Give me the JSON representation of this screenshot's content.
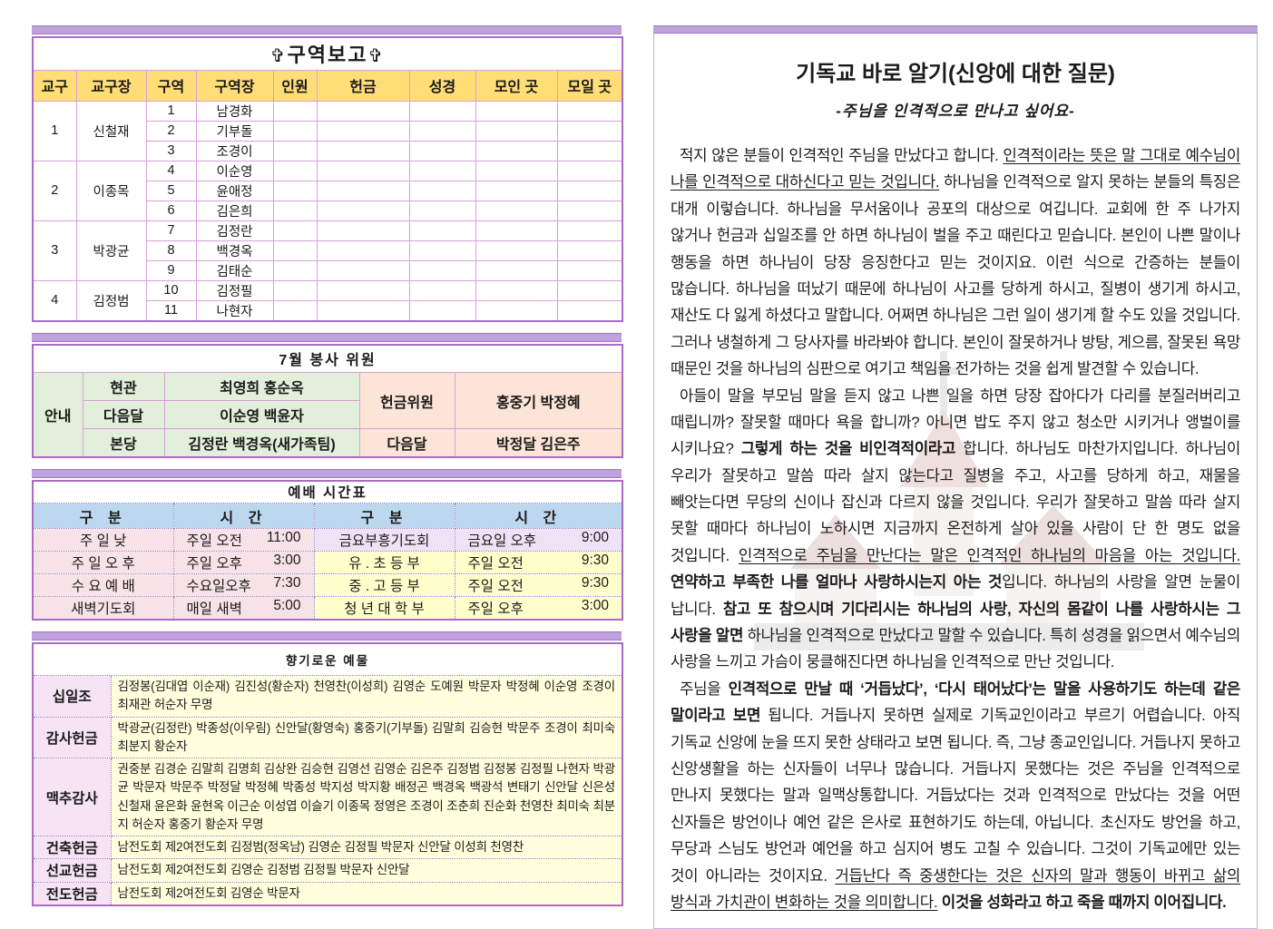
{
  "accent_colors": {
    "bar_purple": "#bfa2dd",
    "table_border": "#a96bc6",
    "header_yellow": "#ffdd77",
    "green": "#e2efda",
    "peach": "#fce4d6",
    "blue": "#bdd7ee",
    "pink": "#f7e3e7",
    "lavender": "#f0e2f6",
    "yellow": "#ffffcc"
  },
  "district_report": {
    "title": "구역보고",
    "cross_icon": "✞",
    "headers": [
      "교구",
      "교구장",
      "구역",
      "구역장",
      "인원",
      "헌금",
      "성경",
      "모인 곳",
      "모일 곳"
    ],
    "groups": [
      {
        "gu": "1",
        "leader": "신철재",
        "rows": [
          [
            "1",
            "남경화"
          ],
          [
            "2",
            "기부돌"
          ],
          [
            "3",
            "조경이"
          ]
        ]
      },
      {
        "gu": "2",
        "leader": "이종목",
        "rows": [
          [
            "4",
            "이순영"
          ],
          [
            "5",
            "윤애정"
          ],
          [
            "6",
            "김은희"
          ]
        ]
      },
      {
        "gu": "3",
        "leader": "박광균",
        "rows": [
          [
            "7",
            "김정란"
          ],
          [
            "8",
            "백경옥"
          ],
          [
            "9",
            "김태순"
          ]
        ]
      },
      {
        "gu": "4",
        "leader": "김정범",
        "rows": [
          [
            "10",
            "김정필"
          ],
          [
            "11",
            "나현자"
          ]
        ]
      }
    ]
  },
  "service_committee": {
    "title": "7월 봉사 위원",
    "left_label": "안내",
    "rows": [
      {
        "slot": "현관",
        "names": "최영희 홍순옥"
      },
      {
        "slot": "다음달",
        "names": "이순영 백윤자"
      },
      {
        "slot": "본당",
        "names": "김정란 백경옥(새가족팀)"
      }
    ],
    "right": [
      {
        "slot": "헌금위원",
        "names": "홍중기 박정혜"
      },
      {
        "slot": "다음달",
        "names": "박정달 김은주"
      }
    ]
  },
  "worship_schedule": {
    "title": "예배 시간표",
    "headers": [
      "구  분",
      "시  간",
      "구  분",
      "시  간"
    ],
    "rows": [
      {
        "l_name": "주 일 낮",
        "l_day": "주일 오전",
        "l_time": "11:00",
        "r_name": "금요부흥기도회",
        "r_day": "금요일 오후",
        "r_time": "9:00",
        "r_style": "lav"
      },
      {
        "l_name": "주 일 오 후",
        "l_day": "주일 오후",
        "l_time": "3:00",
        "r_name": "유 . 초 등 부",
        "r_day": "주일  오전",
        "r_time": "9:30",
        "r_style": "yel"
      },
      {
        "l_name": "수 요 예 배",
        "l_day": "수요일오후",
        "l_time": "7:30",
        "r_name": "중 . 고 등 부",
        "r_day": "주일  오전",
        "r_time": "9:30",
        "r_style": "yel"
      },
      {
        "l_name": "새벽기도회",
        "l_day": "매일 새벽",
        "l_time": "5:00",
        "r_name": "청 년 대 학 부",
        "r_day": "주일  오후",
        "r_time": "3:00",
        "r_style": "yel"
      }
    ]
  },
  "offerings": {
    "title": "향기로운 예물",
    "rows": [
      {
        "label": "십일조",
        "names": "김정봉(김대엽  이순재)  김진성(황순자)  천영찬(이성희)  김영순  도예원  박문자 박정혜 이순영 조경이 최재관 허순자 무명"
      },
      {
        "label": "감사헌금",
        "names": "박광균(김정란)  박종성(이우림)  신안달(황영숙)  홍중기(기부돌)  김말희  김승현 박문주 조경이 최미숙 최분지 황순자"
      },
      {
        "label": "맥추감사",
        "names": "권중분 김경순 김말희 김명희 김상완 김승현 김영선 김영순 김은주 김정범 김정봉 김정필 나현자 박광균 박문자 박문주 박정달 박정혜 박종성 박지성 박지황 배정곤 백경옥 백광석 변태기 신안달 신은성 신철재 윤은화 윤현옥 이근순 이성엽 이슬기 이종목 정영은 조경이 조춘희 진순화 천영찬 최미숙 최분지 허순자 홍중기 황순자 무명"
      },
      {
        "label": "건축헌금",
        "names": "남전도회 제2여전도회 김정범(정옥남) 김영순 김정필 박문자 신안달 이성희 천영찬"
      },
      {
        "label": "선교헌금",
        "names": "남전도회 제2여전도회 김영순 김정범 김정필 박문자 신안달"
      },
      {
        "label": "전도헌금",
        "names": "남전도회 제2여전도회 김영순 박문자"
      }
    ]
  },
  "article": {
    "title": "기독교 바로 알기(신앙에 대한 질문)",
    "subtitle": "-주님을 인격적으로 만나고 싶어요-",
    "paragraphs": [
      [
        {
          "t": "적지 않은 분들이 인격적인 주님을 만났다고 합니다. "
        },
        {
          "t": "인격적이라는 뜻은 말 그대로 예수님이 나를 인격적으로 대하신다고 믿는 것입니다.",
          "u": true
        },
        {
          "t": " 하나님을 인격적으로 알지 못하는 분들의 특징은 대개 이렇습니다. 하나님을 무서움이나 공포의 대상으로 여깁니다. 교회에 한 주 나가지 않거나 헌금과 십일조를 안 하면 하나님이 벌을 주고 때린다고 믿습니다. 본인이 나쁜 말이나 행동을 하면 하나님이 당장 응징한다고 믿는 것이지요. 이런 식으로 간증하는 분들이 많습니다. 하나님을 떠났기 때문에 하나님이 사고를 당하게 하시고, 질병이 생기게 하시고, 재산도 다 잃게 하셨다고 말합니다. 어쩌면 하나님은 그런 일이 생기게 할 수도 있을 것입니다. 그러나 냉철하게 그 당사자를 바라봐야 합니다. 본인이 잘못하거나 방탕, 게으름, 잘못된 욕망 때문인 것을 하나님의 심판으로 여기고 책임을 전가하는 것을 쉽게 발견할 수 있습니다."
        }
      ],
      [
        {
          "t": "아들이 말을 부모님 말을 듣지 않고 나쁜 일을 하면 당장 잡아다가 다리를 분질러버리고 때립니까? 잘못할 때마다 욕을 합니까? 아니면 밥도 주지 않고 청소만 시키거나 앵벌이를 시키나요? "
        },
        {
          "t": "그렇게 하는 것을 비인격적이라고",
          "b": true
        },
        {
          "t": " 합니다. 하나님도 마찬가지입니다. 하나님이 우리가 잘못하고 말씀 따라 살지 않는다고 질병을 주고, 사고를 당하게 하고, 재물을 빼앗는다면 무당의 신이나 잡신과 다르지 않을 것입니다. 우리가 잘못하고 말씀 따라 살지 못할 때마다 하나님이 노하시면 지금까지 온전하게 살아 있을 사람이 단 한 명도 없을 것입니다. "
        },
        {
          "t": "인격적으로 주님을 만난다는 말은 인격적인 하나님의 마음을 아는 것입니다.",
          "u": true
        },
        {
          "t": " "
        },
        {
          "t": "연약하고 부족한 나를 얼마나 사랑하시는지 아는 것",
          "b": true
        },
        {
          "t": "입니다. 하나님의 사랑을 알면 눈물이 납니다. "
        },
        {
          "t": "참고 또 참으시며 기다리시는 하나님의 사랑, 자신의 몸같이 나를 사랑하시는 그 사랑을 알면",
          "b": true
        },
        {
          "t": " 하나님을 인격적으로 만났다고 말할 수 있습니다. 특히 성경을 읽으면서 예수님의 사랑을 느끼고 가슴이 뭉클해진다면 하나님을 인격적으로 만난 것입니다."
        }
      ],
      [
        {
          "t": "주님을 "
        },
        {
          "t": "인격적으로 만날 때 ‘거듭났다’, ‘다시 태어났다’는 말을 사용하기도 하는데 같은 말이라고 보면",
          "b": true
        },
        {
          "t": " 됩니다. 거듭나지 못하면 실제로 기독교인이라고 부르기 어렵습니다. 아직 기독교 신앙에 눈을 뜨지 못한 상태라고 보면 됩니다. 즉, 그냥 종교인입니다. 거듭나지 못하고 신앙생활을 하는 신자들이 너무나 많습니다. 거듭나지 못했다는 것은 주님을 인격적으로 만나지 못했다는 말과 일맥상통합니다. 거듭났다는 것과 인격적으로 만났다는 것을 어떤 신자들은 방언이나 예언 같은 은사로 표현하기도 하는데, 아닙니다. 초신자도 방언을 하고, 무당과 스님도 방언과 예언을 하고 심지어 병도 고칠 수 있습니다. 그것이 기독교에만 있는 것이 아니라는 것이지요. "
        },
        {
          "t": "거듭난다 즉 중생한다는 것은 신자의 말과 행동이 바뀌고 삶의 방식과 가치관이 변화하는 것을 의미합니다.",
          "u": true
        },
        {
          "t": " "
        },
        {
          "t": "이것을 성화라고 하고 죽을 때까지 이어집니다.",
          "b": true
        }
      ]
    ]
  }
}
